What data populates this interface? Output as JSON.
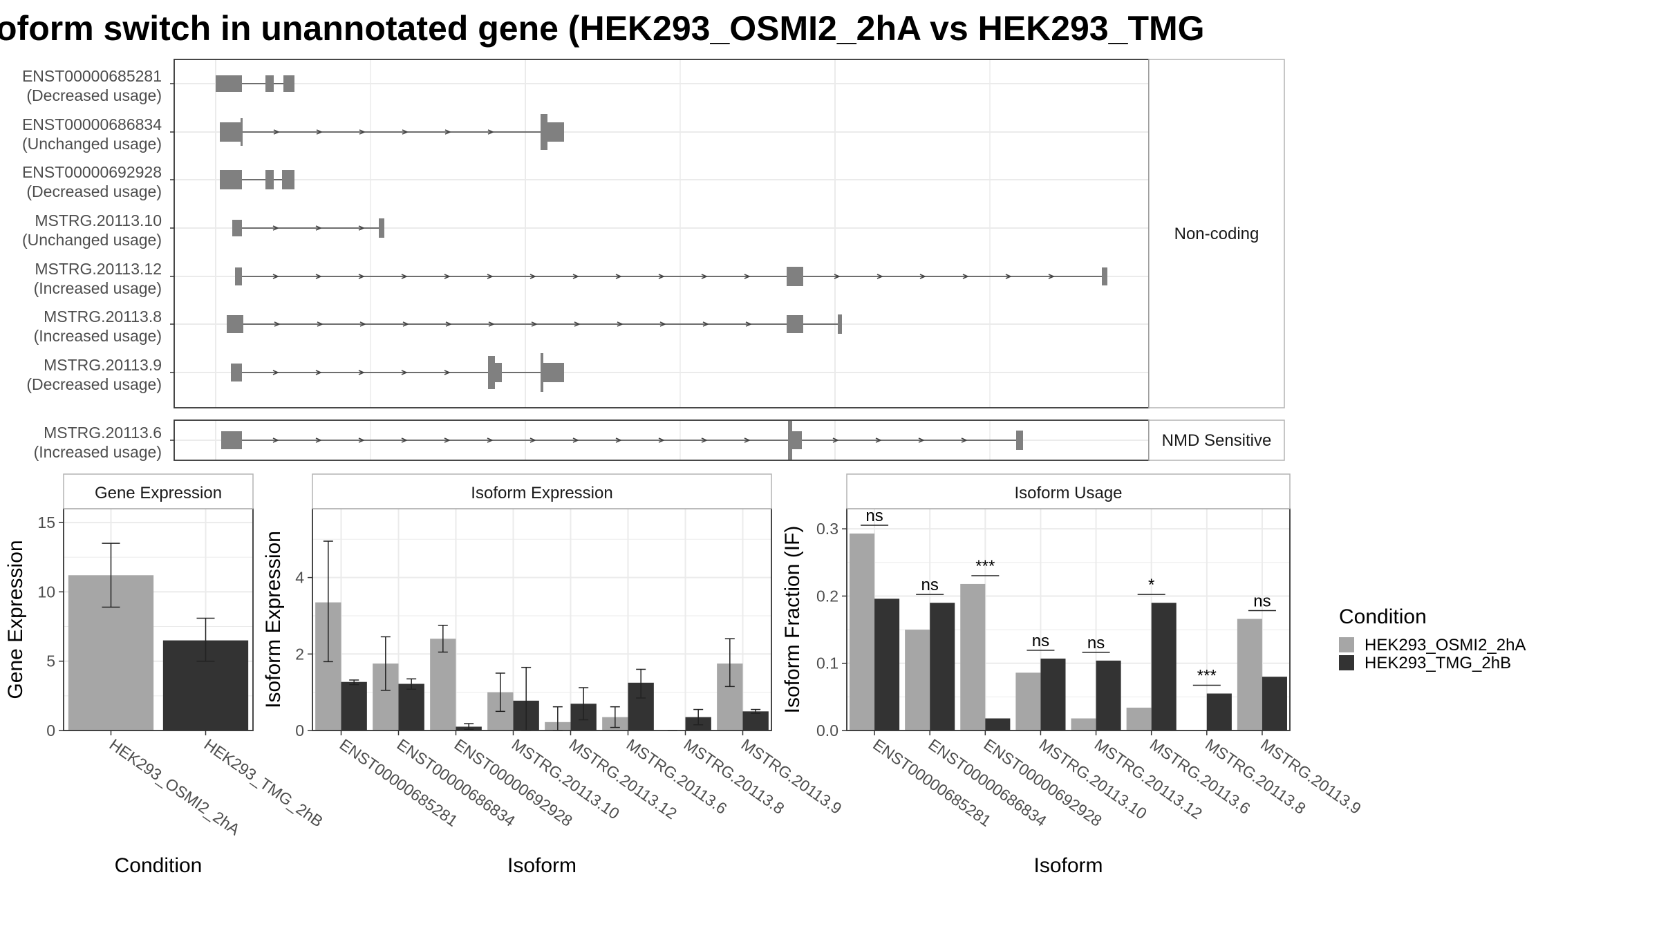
{
  "title": "oform switch in unannotated gene (HEK293_OSMI2_2hA vs HEK293_TMG",
  "colors": {
    "cond_a": "#a6a6a6",
    "cond_b": "#333333",
    "exon": "#808080",
    "intron": "#444444",
    "grid": "#ebebeb",
    "panel_border": "#333333",
    "strip_border": "#b3b3b3",
    "strip_fill": "#ffffff"
  },
  "chart_data": [
    {
      "type": "gene-model",
      "panel": "top",
      "strip_label": "Non-coding",
      "isoforms": [
        {
          "id": "ENST00000685281",
          "usage": "(Decreased usage)"
        },
        {
          "id": "ENST00000686834",
          "usage": "(Unchanged usage)"
        },
        {
          "id": "ENST00000692928",
          "usage": "(Decreased usage)"
        },
        {
          "id": "MSTRG.20113.10",
          "usage": "(Unchanged usage)"
        },
        {
          "id": "MSTRG.20113.12",
          "usage": "(Increased usage)"
        },
        {
          "id": "MSTRG.20113.8",
          "usage": "(Increased usage)"
        },
        {
          "id": "MSTRG.20113.9",
          "usage": "(Decreased usage)"
        }
      ]
    },
    {
      "type": "gene-model",
      "panel": "bottom",
      "strip_label": "NMD Sensitive",
      "isoforms": [
        {
          "id": "MSTRG.20113.6",
          "usage": "(Increased usage)"
        }
      ]
    },
    {
      "type": "bar",
      "strip_label": "Gene Expression",
      "xlabel": "Condition",
      "ylabel": "Gene Expression",
      "ylim": [
        0,
        16
      ],
      "yticks": [
        0,
        5,
        10,
        15
      ],
      "categories": [
        "HEK293_OSMI2_2hA",
        "HEK293_TMG_2hB"
      ],
      "values": [
        11.2,
        6.5
      ],
      "err_low": [
        8.9,
        5.0
      ],
      "err_high": [
        13.5,
        8.1
      ]
    },
    {
      "type": "bar",
      "strip_label": "Isoform Expression",
      "xlabel": "Isoform",
      "ylabel": "Isoform Expression",
      "ylim": [
        0,
        5.8
      ],
      "yticks": [
        0,
        2,
        4
      ],
      "categories": [
        "ENST00000685281",
        "ENST00000686834",
        "ENST00000692928",
        "MSTRG.20113.10",
        "MSTRG.20113.12",
        "MSTRG.20113.6",
        "MSTRG.20113.8",
        "MSTRG.20113.9"
      ],
      "series": [
        {
          "name": "HEK293_OSMI2_2hA",
          "values": [
            3.35,
            1.75,
            2.4,
            1.0,
            0.22,
            0.35,
            0.0,
            1.75
          ],
          "err_low": [
            1.8,
            1.05,
            2.05,
            0.5,
            0.0,
            0.08,
            0.0,
            1.15
          ],
          "err_high": [
            4.95,
            2.45,
            2.75,
            1.5,
            0.62,
            0.62,
            0.0,
            2.4
          ]
        },
        {
          "name": "HEK293_TMG_2hB",
          "values": [
            1.27,
            1.22,
            0.1,
            0.78,
            0.7,
            1.25,
            0.35,
            0.5
          ],
          "err_low": [
            1.2,
            1.08,
            0.03,
            0.0,
            0.28,
            0.85,
            0.15,
            0.45
          ],
          "err_high": [
            1.32,
            1.35,
            0.18,
            1.65,
            1.12,
            1.6,
            0.55,
            0.55
          ]
        }
      ]
    },
    {
      "type": "bar",
      "strip_label": "Isoform Usage",
      "xlabel": "Isoform",
      "ylabel": "Isoform Fraction (IF)",
      "ylim": [
        0,
        0.33
      ],
      "yticks": [
        0.0,
        0.1,
        0.2,
        0.3
      ],
      "ytick_labels": [
        "0.0",
        "0.1",
        "0.2",
        "0.3"
      ],
      "categories": [
        "ENST00000685281",
        "ENST00000686834",
        "ENST00000692928",
        "MSTRG.20113.10",
        "MSTRG.20113.12",
        "MSTRG.20113.6",
        "MSTRG.20113.8",
        "MSTRG.20113.9"
      ],
      "series": [
        {
          "name": "HEK293_OSMI2_2hA",
          "values": [
            0.293,
            0.15,
            0.218,
            0.086,
            0.018,
            0.034,
            0.0,
            0.166
          ]
        },
        {
          "name": "HEK293_TMG_2hB",
          "values": [
            0.196,
            0.19,
            0.018,
            0.107,
            0.104,
            0.19,
            0.055,
            0.08
          ]
        }
      ],
      "significance": [
        "ns",
        "ns",
        "***",
        "ns",
        "ns",
        "*",
        "***",
        "ns"
      ]
    }
  ],
  "legend": {
    "title": "Condition",
    "items": [
      "HEK293_OSMI2_2hA",
      "HEK293_TMG_2hB"
    ]
  }
}
